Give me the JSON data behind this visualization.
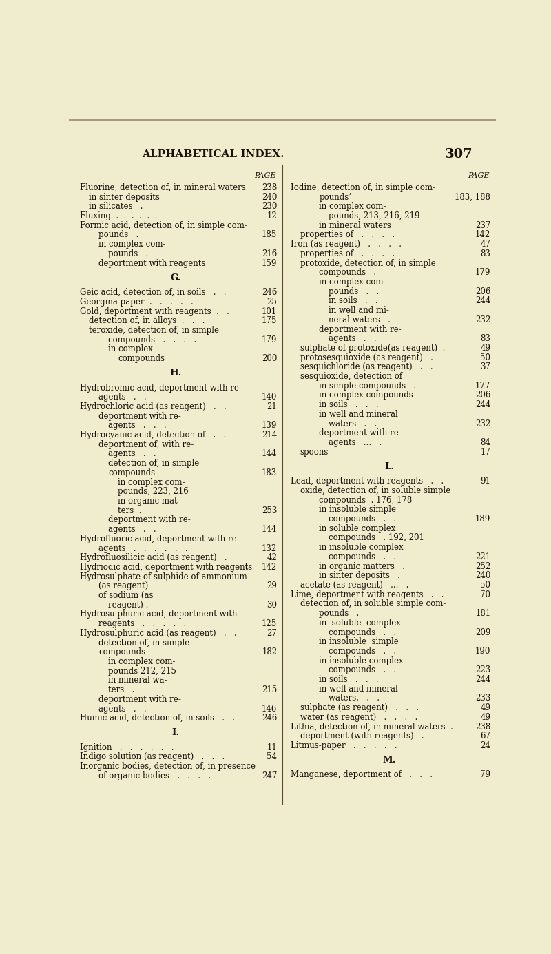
{
  "bg_color": "#f0edcf",
  "text_color": "#1a1008",
  "title": "ALPHABETICAL INDEX.",
  "page_num": "307",
  "left_col": [
    {
      "indent": 0,
      "text": "Fluorine, detection of, in mineral waters",
      "page": "238"
    },
    {
      "indent": 1,
      "text": "in sinter deposits",
      "page": "240"
    },
    {
      "indent": 1,
      "text": "in silicates   .",
      "page": "230"
    },
    {
      "indent": 0,
      "text": "Fluxing  .  .  .  .  .  .",
      "page": "12"
    },
    {
      "indent": 0,
      "text": "Formic acid, detection of, in simple com-",
      "page": ""
    },
    {
      "indent": 2,
      "text": "pounds   .",
      "page": "185"
    },
    {
      "indent": 2,
      "text": "in complex com-",
      "page": ""
    },
    {
      "indent": 3,
      "text": "pounds   .",
      "page": "216"
    },
    {
      "indent": 2,
      "text": "deportment with reagents",
      "page": "159"
    },
    {
      "indent": -1,
      "text": "G.",
      "page": "",
      "center": true
    },
    {
      "indent": 0,
      "text": "Geic acid, detection of, in soils   .   .",
      "page": "246"
    },
    {
      "indent": 0,
      "text": "Georgina paper  .   .   .   .   .",
      "page": "25"
    },
    {
      "indent": 0,
      "text": "Gold, deportment with reagents  .   .",
      "page": "101"
    },
    {
      "indent": 1,
      "text": "detection of, in alloys  .   .   .",
      "page": "175"
    },
    {
      "indent": 1,
      "text": "teroxide, detection of, in simple",
      "page": ""
    },
    {
      "indent": 3,
      "text": "compounds   .   .   .   .",
      "page": "179"
    },
    {
      "indent": 3,
      "text": "in complex",
      "page": ""
    },
    {
      "indent": 4,
      "text": "compounds",
      "page": "200"
    },
    {
      "indent": -1,
      "text": "H.",
      "page": "",
      "center": true
    },
    {
      "indent": 0,
      "text": "Hydrobromic acid, deportment with re-",
      "page": ""
    },
    {
      "indent": 2,
      "text": "agents   .   .",
      "page": "140"
    },
    {
      "indent": 0,
      "text": "Hydrochloric acid (as reagent)   .   .",
      "page": "21"
    },
    {
      "indent": 2,
      "text": "deportment with re-",
      "page": ""
    },
    {
      "indent": 3,
      "text": "agents   .   .   .",
      "page": "139"
    },
    {
      "indent": 0,
      "text": "Hydrocyanic acid, detection of   .   .",
      "page": "214"
    },
    {
      "indent": 2,
      "text": "deportment of, with re-",
      "page": ""
    },
    {
      "indent": 3,
      "text": "agents   .   .",
      "page": "144"
    },
    {
      "indent": 3,
      "text": "detection of, in simple",
      "page": ""
    },
    {
      "indent": 3,
      "text": "compounds",
      "page": "183"
    },
    {
      "indent": 4,
      "text": "in complex com-",
      "page": ""
    },
    {
      "indent": 4,
      "text": "pounds, 223, 216",
      "page": ""
    },
    {
      "indent": 4,
      "text": "in organic mat-",
      "page": ""
    },
    {
      "indent": 4,
      "text": "ters  .",
      "page": "253"
    },
    {
      "indent": 3,
      "text": "deportment with re-",
      "page": ""
    },
    {
      "indent": 3,
      "text": "agents   .   .",
      "page": "144"
    },
    {
      "indent": 0,
      "text": "Hydrofluoric acid, deportment with re-",
      "page": ""
    },
    {
      "indent": 2,
      "text": "agents   .   .   .   .   .   .",
      "page": "132"
    },
    {
      "indent": 0,
      "text": "Hydrofluosilicic acid (as reagent)   .",
      "page": "42"
    },
    {
      "indent": 0,
      "text": "Hydriodic acid, deportment with reagents",
      "page": "142"
    },
    {
      "indent": 0,
      "text": "Hydrosulphate of sulphide of ammonium",
      "page": ""
    },
    {
      "indent": 2,
      "text": "(as reagent)",
      "page": "29"
    },
    {
      "indent": 2,
      "text": "of sodium (as",
      "page": ""
    },
    {
      "indent": 3,
      "text": "reagent) .",
      "page": "30"
    },
    {
      "indent": 0,
      "text": "Hydrosulphuric acid, deportment with",
      "page": ""
    },
    {
      "indent": 2,
      "text": "reagents   .   .   .   .   .",
      "page": "125"
    },
    {
      "indent": 0,
      "text": "Hydrosulphuric acid (as reagent)   .   .",
      "page": "27"
    },
    {
      "indent": 2,
      "text": "detection of, in simple",
      "page": ""
    },
    {
      "indent": 2,
      "text": "compounds",
      "page": "182"
    },
    {
      "indent": 3,
      "text": "in complex com-",
      "page": ""
    },
    {
      "indent": 3,
      "text": "pounds 212, 215",
      "page": ""
    },
    {
      "indent": 3,
      "text": "in mineral wa-",
      "page": ""
    },
    {
      "indent": 3,
      "text": "ters   .",
      "page": "215"
    },
    {
      "indent": 2,
      "text": "deportment with re-",
      "page": ""
    },
    {
      "indent": 2,
      "text": "agents   .   .",
      "page": "146"
    },
    {
      "indent": 0,
      "text": "Humic acid, detection of, in soils   .   .",
      "page": "246"
    },
    {
      "indent": -1,
      "text": "I.",
      "page": "",
      "center": true
    },
    {
      "indent": 0,
      "text": "Ignition   .   .   .   .   .   .",
      "page": "11"
    },
    {
      "indent": 0,
      "text": "Indigo solution (as reagent)   .   .   .",
      "page": "54"
    },
    {
      "indent": 0,
      "text": "Inorganic bodies, detection of, in presence",
      "page": ""
    },
    {
      "indent": 2,
      "text": "of organic bodies   .   .   .   .",
      "page": "247"
    }
  ],
  "right_col": [
    {
      "indent": 0,
      "text": "Iodine, detection of, in simple com-",
      "page": ""
    },
    {
      "indent": 3,
      "text": "poundsʼ",
      "page": "183, 188"
    },
    {
      "indent": 3,
      "text": "in complex com-",
      "page": ""
    },
    {
      "indent": 4,
      "text": "pounds, 213, 216, 219",
      "page": ""
    },
    {
      "indent": 3,
      "text": "in mineral waters",
      "page": "237"
    },
    {
      "indent": 1,
      "text": "properties of   .   .   .   .",
      "page": "142"
    },
    {
      "indent": 0,
      "text": "Iron (as reagent)   .   .   .   .",
      "page": "47"
    },
    {
      "indent": 1,
      "text": "properties of   .   .   .   .",
      "page": "83"
    },
    {
      "indent": 1,
      "text": "protoxide, detection of, in simple",
      "page": ""
    },
    {
      "indent": 3,
      "text": "compounds   .",
      "page": "179"
    },
    {
      "indent": 3,
      "text": "in complex com-",
      "page": ""
    },
    {
      "indent": 4,
      "text": "pounds   .   .",
      "page": "206"
    },
    {
      "indent": 4,
      "text": "in soils   .   .",
      "page": "244"
    },
    {
      "indent": 4,
      "text": "in well and mi-",
      "page": ""
    },
    {
      "indent": 4,
      "text": "neral waters   .",
      "page": "232"
    },
    {
      "indent": 3,
      "text": "deportment with re-",
      "page": ""
    },
    {
      "indent": 4,
      "text": "agents   .   .",
      "page": "83"
    },
    {
      "indent": 1,
      "text": "sulphate of protoxide(as reagent)  .",
      "page": "49"
    },
    {
      "indent": 1,
      "text": "protosesquioxide (as reagent)   .",
      "page": "50"
    },
    {
      "indent": 1,
      "text": "sesquichloride (as reagent)   .   .",
      "page": "37"
    },
    {
      "indent": 1,
      "text": "sesquioxide, detection of",
      "page": ""
    },
    {
      "indent": 3,
      "text": "in simple compounds   .",
      "page": "177"
    },
    {
      "indent": 3,
      "text": "in complex compounds",
      "page": "206"
    },
    {
      "indent": 3,
      "text": "in soils   .   .   .",
      "page": "244"
    },
    {
      "indent": 3,
      "text": "in well and mineral",
      "page": ""
    },
    {
      "indent": 4,
      "text": "waters   .   .",
      "page": "232"
    },
    {
      "indent": 3,
      "text": "deportment with re-",
      "page": ""
    },
    {
      "indent": 4,
      "text": "agents   ...   .",
      "page": "84"
    },
    {
      "indent": 1,
      "text": "spoons",
      "page": "17"
    },
    {
      "indent": -1,
      "text": "L.",
      "page": "",
      "center": true
    },
    {
      "indent": 0,
      "text": "Lead, deportment with reagents   .   .",
      "page": "91"
    },
    {
      "indent": 1,
      "text": "oxide, detection of, in soluble simple",
      "page": ""
    },
    {
      "indent": 3,
      "text": "compounds  . 176, 178",
      "page": ""
    },
    {
      "indent": 3,
      "text": "in insoluble simple",
      "page": ""
    },
    {
      "indent": 4,
      "text": "compounds   .   .",
      "page": "189"
    },
    {
      "indent": 3,
      "text": "in soluble complex",
      "page": ""
    },
    {
      "indent": 4,
      "text": "compounds   . 192, 201",
      "page": ""
    },
    {
      "indent": 3,
      "text": "in insoluble complex",
      "page": ""
    },
    {
      "indent": 4,
      "text": "compounds   .   .",
      "page": "221"
    },
    {
      "indent": 3,
      "text": "in organic matters   .",
      "page": "252"
    },
    {
      "indent": 3,
      "text": "in sinter deposits   .",
      "page": "240"
    },
    {
      "indent": 1,
      "text": "acetate (as reagent)   ...   .",
      "page": "50"
    },
    {
      "indent": 0,
      "text": "Lime, deportment with reagents   .   .",
      "page": "70"
    },
    {
      "indent": 1,
      "text": "detection of, in soluble simple com-",
      "page": ""
    },
    {
      "indent": 3,
      "text": "pounds   .",
      "page": "181"
    },
    {
      "indent": 3,
      "text": "in  soluble  complex",
      "page": ""
    },
    {
      "indent": 4,
      "text": "compounds   .   .",
      "page": "209"
    },
    {
      "indent": 3,
      "text": "in insoluble  simple",
      "page": ""
    },
    {
      "indent": 4,
      "text": "compounds   .   .",
      "page": "190"
    },
    {
      "indent": 3,
      "text": "in insoluble complex",
      "page": ""
    },
    {
      "indent": 4,
      "text": "compounds   .   .",
      "page": "223"
    },
    {
      "indent": 3,
      "text": "in soils   .   .   .",
      "page": "244"
    },
    {
      "indent": 3,
      "text": "in well and mineral",
      "page": ""
    },
    {
      "indent": 4,
      "text": "waters.   .   .",
      "page": "233"
    },
    {
      "indent": 1,
      "text": "sulphate (as reagent)   .   .   .",
      "page": "49"
    },
    {
      "indent": 1,
      "text": "water (as reagent)   .   .   .   .",
      "page": "49"
    },
    {
      "indent": 0,
      "text": "Lithia, detection of, in mineral waters  .",
      "page": "238"
    },
    {
      "indent": 1,
      "text": "deportment (with reagents)   .",
      "page": "67"
    },
    {
      "indent": 0,
      "text": "Litmus-paper   .   .   .   .   .",
      "page": "24"
    },
    {
      "indent": -1,
      "text": "M.",
      "page": "",
      "center": true
    },
    {
      "indent": 0,
      "text": "Manganese, deportment of   .   .   .",
      "page": "79"
    }
  ]
}
